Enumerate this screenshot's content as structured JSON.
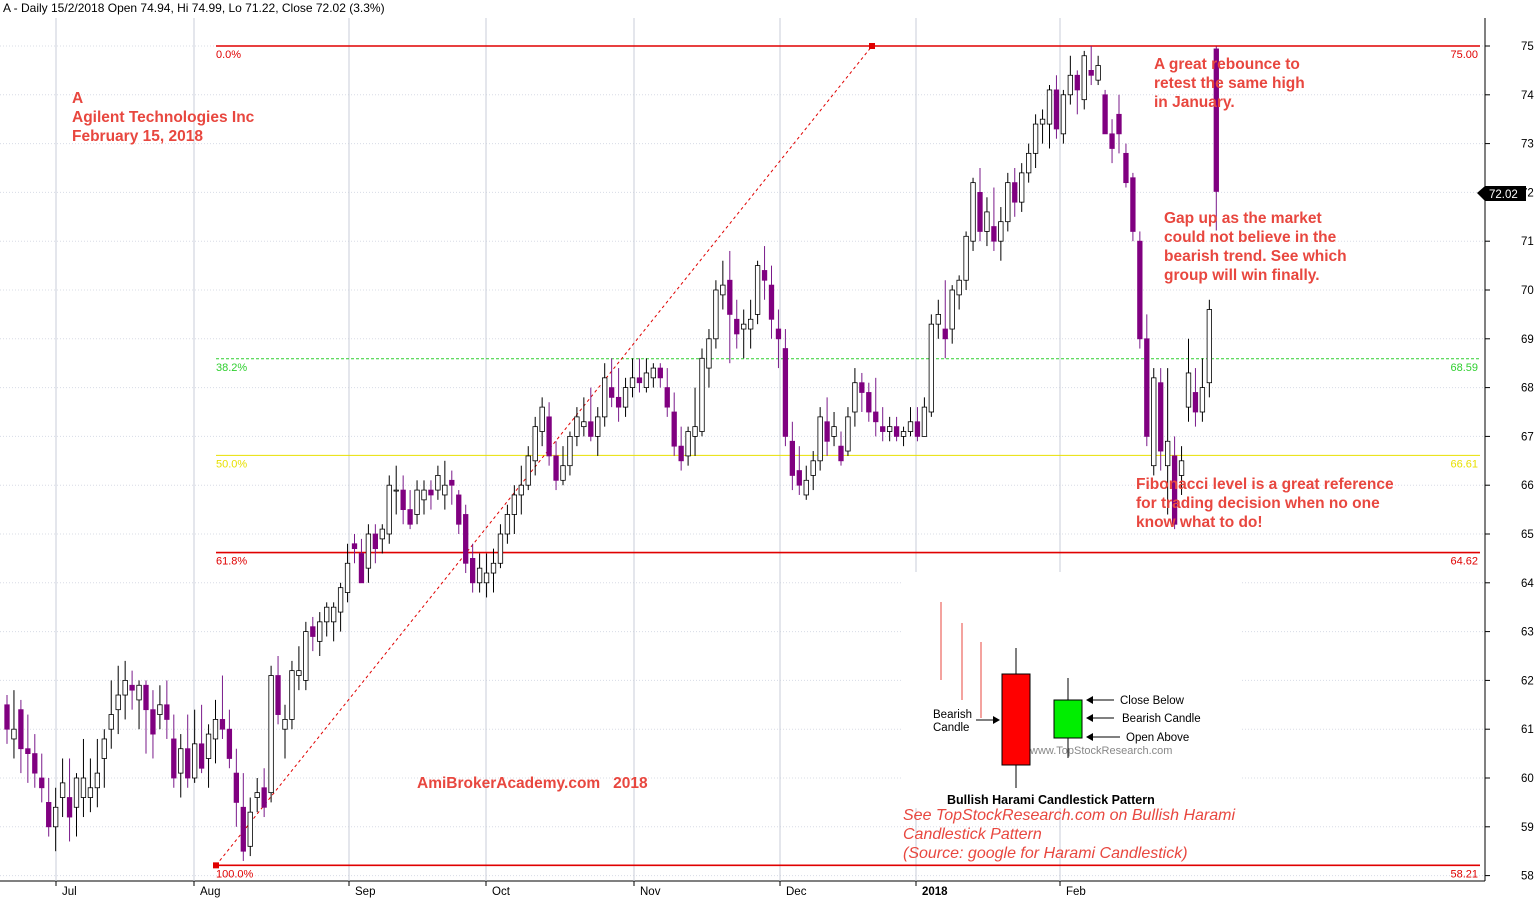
{
  "header": "A - Daily 15/2/2018 Open 74.94, Hi 74.99, Lo 71.22, Close 72.02 (3.3%)",
  "title_lines": [
    "A",
    "Agilent Technologies Inc",
    "February 15, 2018"
  ],
  "annotations": {
    "rebounce": [
      "A great rebounce to",
      "retest the same high",
      "in January."
    ],
    "gap": [
      "Gap up as the market",
      "could not believe in the",
      "bearish trend. See which",
      "group will win finally."
    ],
    "fib_note": [
      "Fibonacci level is a great reference",
      "for trading decision when no one",
      "know what to do!"
    ],
    "watermark": "AmiBrokerAcademy.com   2018",
    "source": [
      "See TopStockResearch.com on Bullish Harami",
      "Candlestick Pattern",
      "(Source: google for Harami Candlestick)"
    ]
  },
  "inset": {
    "title": "Bullish Harami Candlestick Pattern",
    "bearish_label": [
      "Bearish",
      "Candle"
    ],
    "close_below": "Close Below",
    "bearish_candle": "Bearish Candle",
    "open_above": "Open Above",
    "site": "www.TopStockResearch.com"
  },
  "chart_data": {
    "type": "candlestick",
    "y_ticks": [
      "75",
      "74",
      "73",
      "72",
      "71",
      "70",
      "69",
      "68",
      "67",
      "66",
      "65",
      "64",
      "63",
      "62",
      "61",
      "60",
      "59",
      "58"
    ],
    "x_ticks": [
      {
        "label": "Jul",
        "index": 0
      },
      {
        "label": "Aug",
        "index": 1
      },
      {
        "label": "Sep",
        "index": 2
      },
      {
        "label": "Oct",
        "index": 3
      },
      {
        "label": "Nov",
        "index": 4
      },
      {
        "label": "Dec",
        "index": 5
      },
      {
        "label": "2018",
        "index": 6
      },
      {
        "label": "Feb",
        "index": 7
      }
    ],
    "last_close": "72.02",
    "fib_levels": [
      {
        "pct": "0.0%",
        "price": "75.00",
        "value": 75.0,
        "style": "solid"
      },
      {
        "pct": "38.2%",
        "price": "68.59",
        "value": 68.59,
        "style": "dashed"
      },
      {
        "pct": "50.0%",
        "price": "66.61",
        "value": 66.61,
        "style": "thin"
      },
      {
        "pct": "61.8%",
        "price": "64.62",
        "value": 64.62,
        "style": "solid"
      },
      {
        "pct": "100.0%",
        "price": "58.21",
        "value": 58.21,
        "style": "solid"
      }
    ],
    "fib_trend": {
      "from": 58.21,
      "to": 75.0
    },
    "candles_ohlc": [
      [
        61.5,
        61.7,
        60.7,
        61.0
      ],
      [
        60.8,
        61.8,
        60.4,
        61.0
      ],
      [
        61.4,
        61.6,
        60.1,
        60.6
      ],
      [
        60.6,
        61.3,
        59.9,
        60.5
      ],
      [
        60.5,
        60.9,
        59.8,
        60.1
      ],
      [
        60.0,
        60.5,
        59.5,
        59.8
      ],
      [
        59.5,
        60.0,
        58.8,
        59.0
      ],
      [
        59.0,
        59.8,
        58.5,
        59.4
      ],
      [
        59.6,
        60.4,
        59.2,
        59.9
      ],
      [
        59.6,
        60.4,
        58.7,
        59.2
      ],
      [
        59.4,
        60.1,
        58.8,
        60.0
      ],
      [
        59.6,
        60.8,
        59.2,
        60.0
      ],
      [
        59.6,
        60.4,
        59.3,
        59.8
      ],
      [
        59.8,
        60.8,
        59.4,
        60.1
      ],
      [
        60.4,
        61.0,
        59.8,
        60.8
      ],
      [
        61.0,
        62.0,
        60.6,
        61.3
      ],
      [
        61.4,
        62.3,
        60.9,
        61.7
      ],
      [
        61.7,
        62.4,
        61.2,
        62.0
      ],
      [
        61.9,
        62.2,
        61.4,
        61.8
      ],
      [
        61.6,
        62.0,
        61.0,
        61.9
      ],
      [
        61.9,
        62.0,
        60.5,
        61.4
      ],
      [
        61.4,
        61.8,
        60.4,
        60.9
      ],
      [
        61.3,
        61.9,
        61.0,
        61.5
      ],
      [
        61.5,
        62.0,
        60.8,
        61.2
      ],
      [
        60.8,
        61.3,
        59.8,
        60.0
      ],
      [
        60.1,
        60.9,
        59.6,
        60.6
      ],
      [
        60.6,
        61.3,
        59.8,
        60.0
      ],
      [
        60.0,
        61.4,
        59.9,
        60.7
      ],
      [
        60.7,
        61.5,
        60.1,
        60.2
      ],
      [
        60.4,
        61.1,
        59.8,
        60.9
      ],
      [
        60.8,
        61.6,
        60.3,
        61.2
      ],
      [
        61.2,
        62.1,
        60.8,
        61.0
      ],
      [
        61.0,
        61.4,
        60.2,
        60.4
      ],
      [
        60.1,
        60.6,
        59.0,
        59.5
      ],
      [
        59.4,
        60.1,
        58.3,
        58.5
      ],
      [
        58.6,
        59.6,
        58.4,
        59.3
      ],
      [
        59.6,
        60.0,
        59.3,
        59.7
      ],
      [
        59.8,
        60.2,
        59.2,
        59.4
      ],
      [
        59.7,
        62.3,
        59.5,
        62.1
      ],
      [
        62.1,
        62.5,
        61.1,
        61.3
      ],
      [
        61.0,
        61.5,
        60.4,
        61.2
      ],
      [
        61.2,
        62.4,
        61.0,
        62.2
      ],
      [
        62.1,
        62.7,
        61.8,
        62.2
      ],
      [
        62.0,
        63.2,
        61.8,
        63.0
      ],
      [
        63.1,
        63.3,
        62.6,
        62.9
      ],
      [
        62.8,
        63.4,
        62.5,
        63.2
      ],
      [
        63.2,
        63.6,
        62.9,
        63.5
      ],
      [
        63.2,
        63.6,
        62.8,
        63.5
      ],
      [
        63.4,
        64.0,
        63.0,
        63.9
      ],
      [
        63.8,
        64.8,
        63.6,
        64.4
      ],
      [
        64.8,
        65.0,
        64.4,
        64.7
      ],
      [
        64.6,
        64.9,
        64.0,
        64.0
      ],
      [
        64.3,
        65.2,
        64.0,
        65.0
      ],
      [
        65.0,
        65.2,
        64.4,
        64.7
      ],
      [
        64.9,
        65.2,
        64.6,
        65.1
      ],
      [
        65.0,
        66.2,
        64.8,
        66.0
      ],
      [
        65.9,
        66.4,
        65.4,
        65.9
      ],
      [
        65.9,
        66.2,
        65.2,
        65.5
      ],
      [
        65.5,
        65.9,
        65.1,
        65.2
      ],
      [
        65.4,
        66.1,
        65.2,
        65.9
      ],
      [
        65.7,
        66.1,
        65.4,
        65.9
      ],
      [
        65.9,
        66.1,
        65.5,
        65.8
      ],
      [
        65.9,
        66.4,
        65.7,
        66.2
      ],
      [
        65.8,
        66.5,
        65.5,
        66.0
      ],
      [
        66.1,
        66.3,
        65.6,
        66.0
      ],
      [
        65.8,
        65.9,
        65.0,
        65.2
      ],
      [
        65.4,
        65.6,
        64.2,
        64.4
      ],
      [
        64.5,
        64.8,
        63.8,
        64.0
      ],
      [
        64.0,
        64.6,
        63.8,
        64.3
      ],
      [
        64.0,
        64.6,
        63.7,
        64.2
      ],
      [
        64.2,
        64.7,
        63.8,
        64.4
      ],
      [
        64.4,
        65.2,
        64.3,
        65.0
      ],
      [
        65.0,
        65.6,
        64.8,
        65.4
      ],
      [
        65.4,
        66.0,
        65.0,
        65.8
      ],
      [
        65.8,
        66.4,
        65.4,
        66.0
      ],
      [
        66.0,
        66.8,
        65.9,
        66.6
      ],
      [
        66.5,
        67.4,
        66.2,
        67.2
      ],
      [
        67.1,
        67.8,
        66.8,
        67.6
      ],
      [
        67.4,
        67.7,
        66.4,
        66.6
      ],
      [
        66.6,
        66.9,
        65.9,
        66.1
      ],
      [
        66.1,
        66.8,
        66.0,
        66.4
      ],
      [
        66.4,
        67.1,
        66.2,
        67.0
      ],
      [
        67.0,
        67.6,
        66.8,
        67.4
      ],
      [
        67.2,
        67.8,
        67.0,
        67.3
      ],
      [
        67.3,
        68.0,
        66.9,
        67.0
      ],
      [
        67.0,
        67.6,
        66.6,
        67.4
      ],
      [
        67.4,
        68.5,
        67.2,
        68.2
      ],
      [
        68.0,
        68.6,
        67.6,
        67.8
      ],
      [
        67.8,
        68.4,
        67.3,
        67.6
      ],
      [
        67.6,
        68.2,
        67.4,
        68.0
      ],
      [
        68.0,
        68.6,
        67.8,
        68.2
      ],
      [
        68.2,
        68.6,
        67.9,
        68.1
      ],
      [
        68.0,
        68.6,
        67.9,
        68.3
      ],
      [
        68.2,
        68.5,
        68.0,
        68.4
      ],
      [
        68.4,
        68.5,
        68.0,
        68.2
      ],
      [
        68.0,
        68.4,
        67.4,
        67.6
      ],
      [
        67.5,
        67.9,
        66.6,
        66.8
      ],
      [
        66.8,
        67.2,
        66.3,
        66.5
      ],
      [
        66.6,
        67.2,
        66.4,
        67.1
      ],
      [
        67.0,
        68.0,
        66.6,
        67.2
      ],
      [
        67.1,
        68.8,
        67.0,
        68.6
      ],
      [
        68.4,
        69.2,
        68.0,
        69.0
      ],
      [
        69.0,
        70.2,
        68.8,
        70.0
      ],
      [
        69.9,
        70.6,
        69.6,
        70.1
      ],
      [
        70.2,
        70.8,
        68.5,
        69.5
      ],
      [
        69.4,
        69.8,
        68.8,
        69.1
      ],
      [
        69.2,
        69.6,
        68.6,
        69.3
      ],
      [
        69.2,
        69.8,
        68.8,
        69.4
      ],
      [
        69.5,
        70.6,
        69.3,
        70.5
      ],
      [
        70.4,
        70.9,
        69.8,
        70.2
      ],
      [
        70.1,
        70.5,
        69.0,
        69.4
      ],
      [
        69.2,
        69.6,
        68.4,
        69.0
      ],
      [
        68.8,
        69.2,
        66.8,
        67.0
      ],
      [
        66.9,
        67.3,
        65.9,
        66.2
      ],
      [
        66.3,
        66.8,
        65.8,
        66.0
      ],
      [
        65.8,
        66.4,
        65.7,
        66.1
      ],
      [
        66.2,
        66.7,
        65.9,
        66.5
      ],
      [
        66.5,
        67.6,
        66.3,
        67.4
      ],
      [
        67.3,
        67.8,
        66.6,
        66.9
      ],
      [
        67.0,
        67.5,
        66.8,
        67.2
      ],
      [
        66.8,
        67.1,
        66.4,
        66.5
      ],
      [
        66.7,
        67.6,
        66.6,
        67.4
      ],
      [
        67.5,
        68.4,
        67.2,
        68.1
      ],
      [
        68.1,
        68.3,
        67.5,
        67.9
      ],
      [
        67.9,
        68.1,
        67.3,
        67.5
      ],
      [
        67.5,
        68.2,
        67.0,
        67.3
      ],
      [
        67.2,
        67.6,
        66.9,
        67.1
      ],
      [
        67.1,
        67.4,
        66.9,
        67.2
      ],
      [
        67.2,
        67.4,
        66.9,
        67.0
      ],
      [
        67.0,
        67.2,
        66.8,
        67.1
      ],
      [
        67.1,
        67.6,
        67.0,
        67.3
      ],
      [
        67.3,
        67.6,
        66.9,
        67.0
      ],
      [
        67.0,
        67.8,
        67.0,
        67.6
      ],
      [
        67.5,
        69.5,
        67.4,
        69.3
      ],
      [
        69.3,
        69.8,
        69.0,
        69.5
      ],
      [
        69.2,
        70.2,
        68.6,
        69.0
      ],
      [
        69.2,
        70.1,
        68.9,
        70.0
      ],
      [
        69.9,
        70.3,
        69.6,
        70.2
      ],
      [
        70.2,
        71.2,
        70.0,
        71.1
      ],
      [
        71.0,
        72.3,
        70.8,
        72.2
      ],
      [
        72.0,
        72.5,
        71.0,
        71.2
      ],
      [
        71.2,
        71.9,
        70.9,
        71.6
      ],
      [
        71.3,
        72.1,
        70.8,
        71.0
      ],
      [
        71.0,
        71.7,
        70.6,
        71.4
      ],
      [
        71.4,
        72.4,
        71.2,
        72.2
      ],
      [
        72.2,
        72.5,
        71.5,
        71.8
      ],
      [
        71.8,
        72.6,
        71.6,
        72.4
      ],
      [
        72.4,
        73.0,
        72.2,
        72.8
      ],
      [
        72.8,
        73.6,
        72.5,
        73.4
      ],
      [
        73.4,
        73.7,
        73.0,
        73.5
      ],
      [
        73.4,
        74.2,
        72.9,
        74.1
      ],
      [
        74.1,
        74.4,
        73.1,
        73.3
      ],
      [
        73.2,
        74.1,
        73.0,
        74.0
      ],
      [
        74.0,
        74.8,
        73.8,
        74.4
      ],
      [
        74.4,
        74.5,
        73.6,
        74.1
      ],
      [
        73.9,
        74.9,
        73.7,
        74.8
      ],
      [
        74.5,
        75.0,
        74.2,
        74.4
      ],
      [
        74.3,
        74.8,
        74.2,
        74.6
      ],
      [
        74.0,
        74.1,
        73.2,
        73.2
      ],
      [
        73.2,
        73.5,
        72.6,
        72.9
      ],
      [
        73.6,
        74.0,
        72.8,
        73.2
      ],
      [
        72.8,
        73.0,
        72.1,
        72.2
      ],
      [
        72.3,
        72.4,
        71.0,
        71.2
      ],
      [
        71.0,
        71.2,
        68.8,
        69.0
      ],
      [
        69.0,
        69.5,
        66.8,
        67.0
      ],
      [
        66.4,
        68.4,
        66.2,
        68.2
      ],
      [
        68.1,
        68.4,
        66.3,
        66.7
      ],
      [
        66.4,
        68.4,
        65.4,
        66.9
      ],
      [
        66.6,
        67.0,
        65.1,
        65.2
      ],
      [
        66.2,
        66.8,
        65.8,
        66.5
      ],
      [
        67.6,
        69.0,
        67.3,
        68.3
      ],
      [
        67.9,
        68.4,
        67.2,
        67.5
      ],
      [
        67.5,
        68.6,
        67.3,
        68.0
      ],
      [
        68.1,
        69.8,
        67.8,
        69.6
      ],
      [
        74.94,
        74.99,
        71.22,
        72.02
      ]
    ]
  }
}
